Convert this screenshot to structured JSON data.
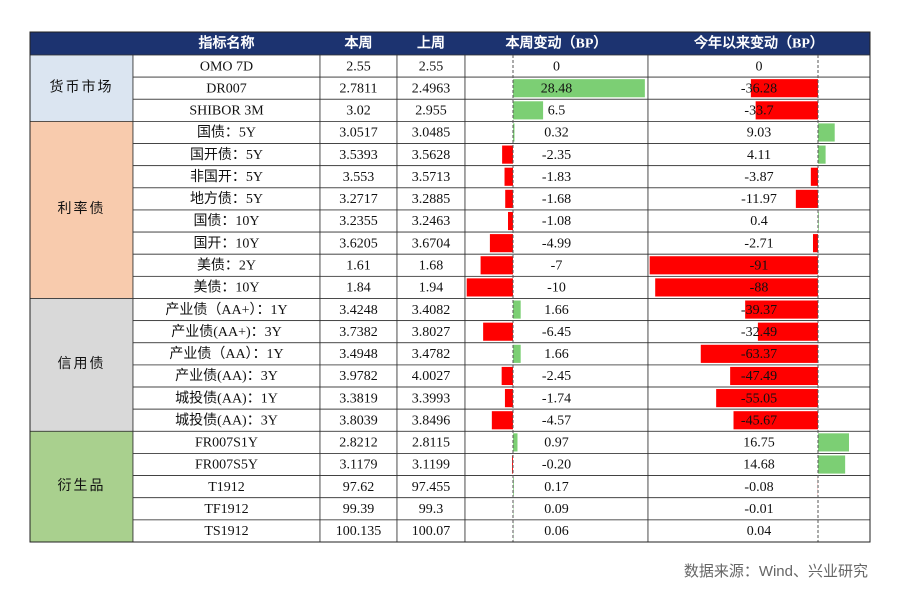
{
  "table": {
    "header": [
      "指标名称",
      "本周",
      "上周",
      "本周变动（BP）",
      "今年以来变动（BP）"
    ],
    "groups": [
      {
        "label": "货币市场",
        "rows": [
          [
            "OMO 7D",
            2.55,
            2.55,
            0,
            0
          ],
          [
            "DR007",
            2.7811,
            2.4963,
            28.48,
            -36.28
          ],
          [
            "SHIBOR 3M",
            3.02,
            2.955,
            6.5,
            -33.7
          ]
        ]
      },
      {
        "label": "利率债",
        "rows": [
          [
            "国债：5Y",
            3.0517,
            3.0485,
            0.32,
            9.03
          ],
          [
            "国开债：5Y",
            3.5393,
            3.5628,
            -2.35,
            4.11
          ],
          [
            "非国开：5Y",
            3.553,
            3.5713,
            -1.83,
            -3.87
          ],
          [
            "地方债：5Y",
            3.2717,
            3.2885,
            -1.68,
            -11.97
          ],
          [
            "国债：10Y",
            3.2355,
            3.2463,
            -1.08,
            0.4
          ],
          [
            "国开：10Y",
            3.6205,
            3.6704,
            -4.99,
            -2.71
          ],
          [
            "美债：2Y",
            1.61,
            1.68,
            -7,
            -91
          ],
          [
            "美债：10Y",
            1.84,
            1.94,
            -10,
            -88
          ]
        ]
      },
      {
        "label": "信用债",
        "rows": [
          [
            "产业债（AA+）：1Y",
            3.4248,
            3.4082,
            1.66,
            -39.37
          ],
          [
            "产业债(AA+)：3Y",
            3.7382,
            3.8027,
            -6.45,
            -32.49
          ],
          [
            "产业债（AA）：1Y",
            3.4948,
            3.4782,
            1.66,
            -63.37
          ],
          [
            "产业债(AA)：3Y",
            3.9782,
            4.0027,
            -2.45,
            -47.49
          ],
          [
            "城投债(AA)：1Y",
            3.3819,
            3.3993,
            -1.74,
            -55.05
          ],
          [
            "城投债(AA)：3Y",
            3.8039,
            3.8496,
            -4.57,
            -45.67
          ]
        ]
      },
      {
        "label": "衍生品",
        "rows": [
          [
            "FR007S1Y",
            2.8212,
            2.8115,
            0.97,
            16.75
          ],
          [
            "FR007S5Y",
            3.1179,
            3.1199,
            {
              "value": -0.2,
              "label": "-0.20"
            },
            14.68
          ],
          [
            "T1912",
            97.62,
            97.455,
            0.17,
            -0.08
          ],
          [
            "TF1912",
            99.39,
            99.3,
            0.09,
            -0.01
          ],
          [
            "TS1912",
            100.135,
            100.07,
            0.06,
            0.04
          ]
        ]
      }
    ]
  },
  "source": "数据来源：Wind、兴业研究"
}
